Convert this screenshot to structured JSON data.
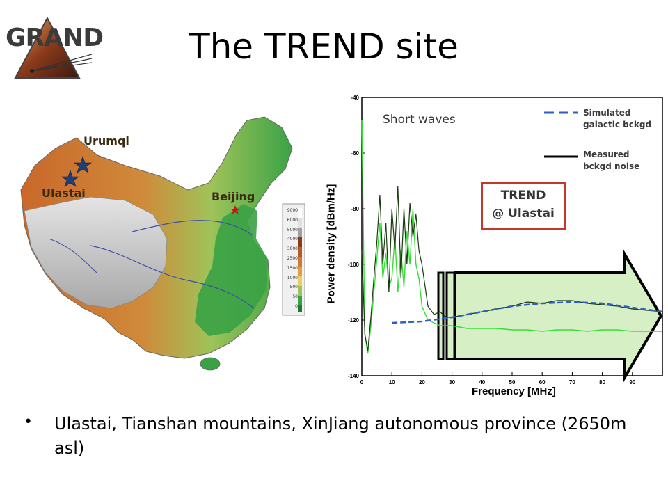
{
  "slide": {
    "title": "The TREND site"
  },
  "logo": {
    "text": "GRAND",
    "colors": {
      "letters": "#3b3b3b",
      "triangle": "#8b3a1a"
    }
  },
  "map": {
    "labels": {
      "urumqi": "Urumqi",
      "ulastai": "Ulastai",
      "beijing": "Beijing"
    },
    "elevation_legend": [
      "9000",
      "6000",
      "5000",
      "4000",
      "3000",
      "2500",
      "1500",
      "1000",
      "500",
      "50",
      "0"
    ],
    "colors": {
      "lowland": "#3aa245",
      "highland": "#c9682a",
      "plateau": "#c8c8c8",
      "water": "#3b4fa8",
      "star": "#1e3f78",
      "capital": "#d01010"
    }
  },
  "chart": {
    "annotation": "Short waves",
    "legend": [
      {
        "label_line1": "Simulated",
        "label_line2": "galactic bckgd",
        "color": "#2f5fbf",
        "style": "dashed"
      },
      {
        "label_line1": "Measured",
        "label_line2": "bckgd noise",
        "color": "#000000",
        "style": "solid"
      }
    ],
    "callout": {
      "line1": "TREND",
      "line2": "@ Ulastai",
      "border_color": "#c0392b"
    },
    "arrow_color": "#d6efc5"
  },
  "chart_data": {
    "type": "line",
    "xlabel": "Frequency [MHz]",
    "ylabel": "Power density [dBm/Hz]",
    "xlim": [
      0,
      100
    ],
    "ylim": [
      -140,
      -40
    ],
    "x_ticks": [
      "0",
      "10",
      "20",
      "30",
      "40",
      "50",
      "60",
      "70",
      "80",
      "90"
    ],
    "y_ticks": [
      "-40",
      "-60",
      "-80",
      "-100",
      "-120",
      "-140"
    ],
    "grid": false,
    "legend_position": "top-right",
    "series": [
      {
        "name": "Simulated galactic bckgd",
        "x": [
          10,
          20,
          30,
          40,
          50,
          60,
          70,
          80,
          90,
          100
        ],
        "y": [
          -121,
          -120.5,
          -119,
          -117,
          -115,
          -114,
          -113.5,
          -114,
          -115.5,
          -117
        ]
      },
      {
        "name": "Measured bckgd noise",
        "x": [
          0,
          1,
          2,
          3,
          4,
          5,
          6,
          7,
          8,
          9,
          10,
          11,
          12,
          13,
          14,
          15,
          16,
          17,
          18,
          19,
          20,
          22,
          24,
          26,
          28,
          30,
          35,
          40,
          45,
          50,
          55,
          60,
          65,
          70,
          75,
          80,
          85,
          90,
          95,
          100
        ],
        "y": [
          -95,
          -125,
          -131,
          -119,
          -105,
          -92,
          -75,
          -100,
          -85,
          -110,
          -80,
          -95,
          -72,
          -105,
          -80,
          -100,
          -78,
          -90,
          -82,
          -95,
          -100,
          -115,
          -118,
          -117,
          -119,
          -119,
          -118,
          -117,
          -116,
          -115,
          -113.5,
          -114,
          -113,
          -113,
          -114,
          -114.5,
          -115,
          -116,
          -116.5,
          -117
        ]
      },
      {
        "x": [
          0,
          1,
          2,
          3,
          4,
          5,
          6,
          7,
          8,
          9,
          10,
          11,
          12,
          13,
          14,
          15,
          16,
          17,
          18,
          19,
          20,
          22,
          24,
          26,
          28,
          30,
          35,
          40,
          45,
          50,
          55,
          60,
          65,
          70,
          75,
          80,
          85,
          90,
          95,
          100
        ],
        "y": [
          -48,
          -125,
          -132,
          -122,
          -110,
          -98,
          -85,
          -105,
          -96,
          -108,
          -105,
          -90,
          -110,
          -95,
          -108,
          -88,
          -100,
          -80,
          -100,
          -105,
          -115,
          -120,
          -121,
          -122,
          -122,
          -122,
          -123,
          -123,
          -123,
          -123.5,
          -123.5,
          -124,
          -123.5,
          -123.5,
          -124,
          -123.5,
          -123.5,
          -124,
          -124,
          -124
        ]
      }
    ]
  },
  "bullets": [
    {
      "text": "Ulastai, Tianshan mountains, XinJiang autonomous province (2650m asl)"
    }
  ]
}
